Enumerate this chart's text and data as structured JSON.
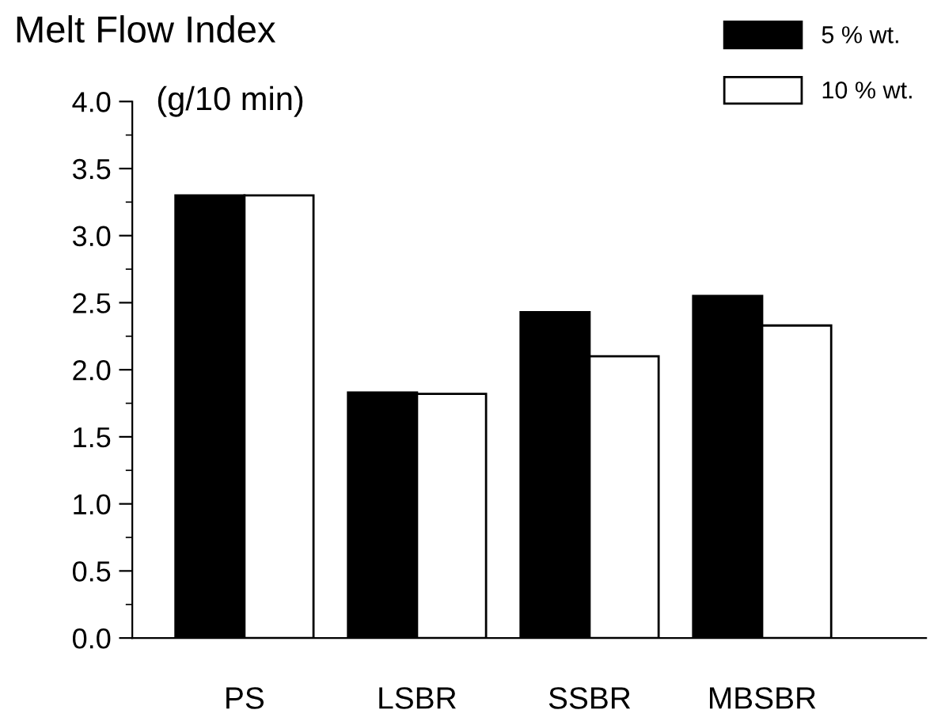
{
  "chart_data": {
    "type": "bar",
    "title": "Melt Flow Index",
    "ylabel": "(g/10 min)",
    "categories": [
      "PS",
      "LSBR",
      "SSBR",
      "MBSBR"
    ],
    "series": [
      {
        "name": "5 % wt.",
        "color": "#000000",
        "values": [
          3.3,
          1.83,
          2.43,
          2.55
        ]
      },
      {
        "name": "10 % wt.",
        "color": "#ffffff",
        "values": [
          3.3,
          1.82,
          2.1,
          2.33
        ]
      }
    ],
    "ylim": [
      0,
      4
    ],
    "yticks": [
      {
        "value": 0,
        "label": "0.0"
      },
      {
        "value": 0.5,
        "label": "0.5"
      },
      {
        "value": 1,
        "label": "1.0"
      },
      {
        "value": 1.5,
        "label": "1.5"
      },
      {
        "value": 2,
        "label": "2.0"
      },
      {
        "value": 2.5,
        "label": "2.5"
      },
      {
        "value": 3,
        "label": "3.0"
      },
      {
        "value": 3.5,
        "label": "3.5"
      },
      {
        "value": 4,
        "label": "4.0"
      }
    ],
    "grid": false,
    "legend": "top right"
  }
}
